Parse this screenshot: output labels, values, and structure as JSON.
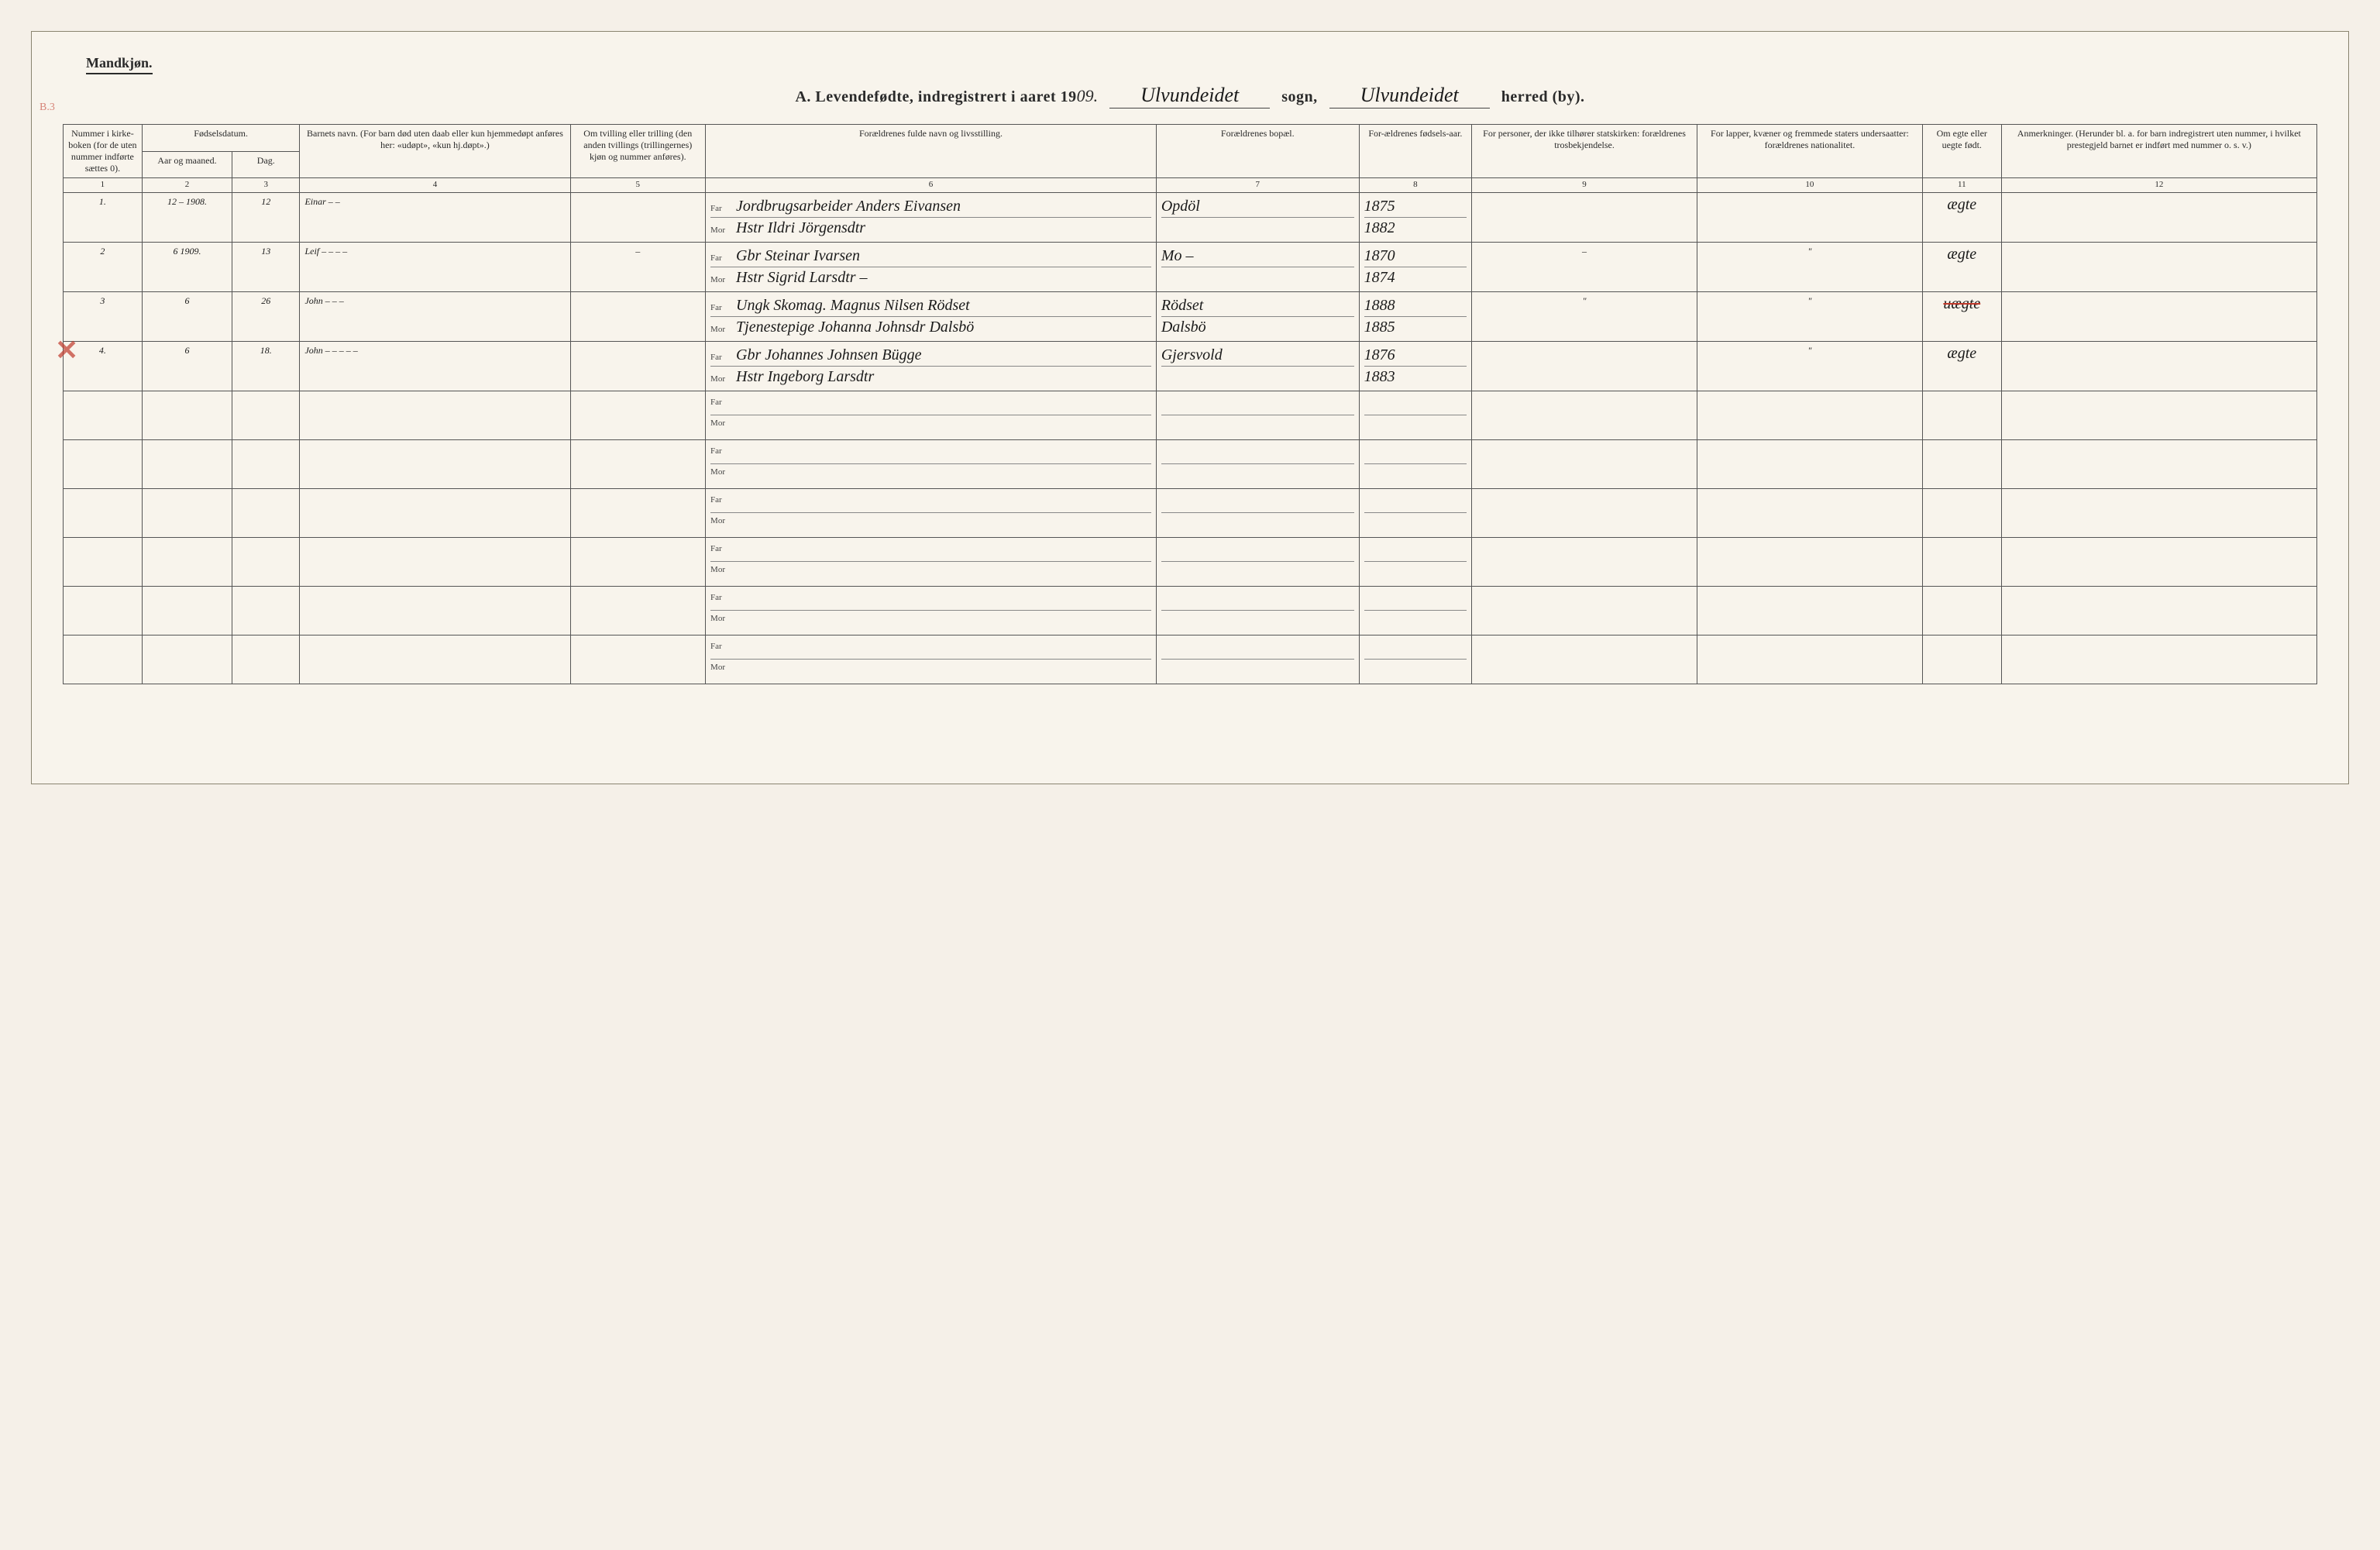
{
  "header": {
    "gender": "Mandkjøn.",
    "title_prefix": "A.  Levendefødte, indregistrert i aaret 19",
    "year_suffix": "09.",
    "sogn_hand": "Ulvundeidet",
    "sogn_label": "sogn,",
    "herred_hand": "Ulvundeidet",
    "herred_label": "herred (by).",
    "stamp": "B.3"
  },
  "columns": {
    "c1": "Nummer i kirke-boken (for de uten nummer indførte sættes 0).",
    "c2a": "Fødselsdatum.",
    "c2": "Aar og maaned.",
    "c3": "Dag.",
    "c4": "Barnets navn.\n(For barn død uten daab eller kun hjemmedøpt anføres her: «udøpt», «kun hj.døpt».)",
    "c5": "Om tvilling eller trilling (den anden tvillings (trillingernes) kjøn og nummer anføres).",
    "c6": "Forældrenes fulde navn og livsstilling.",
    "c7": "Forældrenes bopæl.",
    "c8": "For-ældrenes fødsels-aar.",
    "c9": "For personer, der ikke tilhører statskirken: forældrenes trosbekjendelse.",
    "c10": "For lapper, kvæner og fremmede staters undersaatter: forældrenes nationalitet.",
    "c11": "Om egte eller uegte født.",
    "c12": "Anmerkninger.\n(Herunder bl. a. for barn indregistrert uten nummer, i hvilket prestegjeld barnet er indført med nummer o. s. v.)",
    "n1": "1",
    "n2": "2",
    "n3": "3",
    "n4": "4",
    "n5": "5",
    "n6": "6",
    "n7": "7",
    "n8": "8",
    "n9": "9",
    "n10": "10",
    "n11": "11",
    "n12": "12"
  },
  "far_label": "Far",
  "mor_label": "Mor",
  "rows": [
    {
      "num": "1.",
      "year": "12 – 1908.",
      "day": "12",
      "name": "Einar – –",
      "twin": "",
      "father": "Jordbrugsarbeider Anders Eivansen",
      "mother": "Hstr Ildri Jörgensdtr",
      "residence": "Opdöl",
      "born_f": "1875",
      "born_m": "1882",
      "church": "",
      "lapper": "",
      "legit": "ægte",
      "notes": ""
    },
    {
      "num": "2",
      "year": "6 1909.",
      "day": "13",
      "name": "Leif – – – –",
      "twin": "–",
      "father": "Gbr Steinar Ivarsen",
      "mother": "Hstr Sigrid Larsdtr –",
      "residence": "Mo –",
      "born_f": "1870",
      "born_m": "1874",
      "church": "–",
      "lapper": "\"",
      "legit": "ægte",
      "notes": ""
    },
    {
      "num": "3",
      "year": "6",
      "day": "26",
      "name": "John – – –",
      "twin": "",
      "father": "Ungk Skomag. Magnus Nilsen Rödset",
      "mother": "Tjenestepige Johanna Johnsdr Dalsbö",
      "residence_f": "Rödset",
      "residence_m": "Dalsbö",
      "born_f": "1888",
      "born_m": "1885",
      "church": "\"",
      "lapper": "\"",
      "legit": "uægte",
      "legit_struck": true,
      "notes": ""
    },
    {
      "num": "4.",
      "year": "6",
      "day": "18.",
      "name": "John – – – – –",
      "twin": "",
      "father": "Gbr Johannes Johnsen Bügge",
      "mother": "Hstr Ingeborg Larsdtr",
      "residence": "Gjersvold",
      "born_f": "1876",
      "born_m": "1883",
      "church": "",
      "lapper": "\"",
      "legit": "ægte",
      "notes": ""
    }
  ],
  "empty_rows": 6
}
